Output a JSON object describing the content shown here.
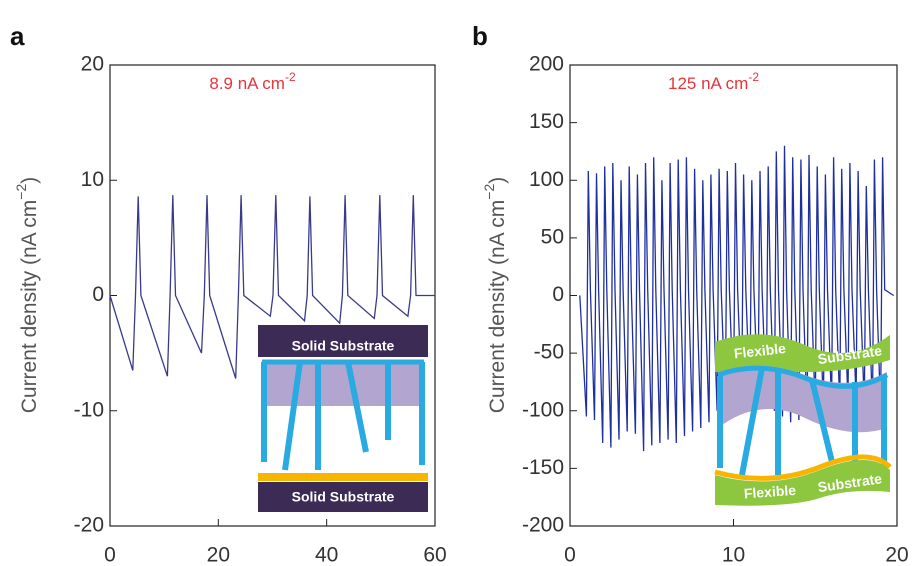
{
  "chart_data": [
    {
      "type": "line",
      "panel_label": "a",
      "annotation": "8.9 nA cm",
      "annotation_sup": "-2",
      "ylabel": "Current density (nA cm",
      "ylabel_sup": "−2",
      "ylabel_end": ")",
      "xlim": [
        0,
        60
      ],
      "xticks": [
        0,
        20,
        40,
        60
      ],
      "ylim": [
        -20,
        20
      ],
      "yticks": [
        -20,
        -10,
        0,
        10,
        20
      ],
      "inset_texts": [
        "Solid Substrate",
        "Solid Substrate"
      ],
      "series": [
        {
          "color": "#3a3a8c",
          "x": [
            0,
            4.2,
            4.7,
            5.2,
            5.7,
            10.6,
            11.1,
            11.6,
            12.1,
            16.9,
            17.4,
            17.9,
            18.4,
            23.2,
            23.7,
            24.2,
            24.7,
            29.6,
            30.1,
            30.6,
            31.1,
            35.9,
            36.4,
            36.9,
            37.4,
            42.4,
            42.9,
            43.4,
            43.9,
            48.8,
            49.3,
            49.8,
            50.3,
            55.0,
            55.5,
            56.0,
            56.5,
            60
          ],
          "values": [
            0,
            -6.5,
            0,
            8.6,
            0,
            -7,
            0,
            8.7,
            0,
            -5,
            0,
            8.7,
            0,
            -7.2,
            0,
            8.7,
            0,
            -1.8,
            0,
            8.7,
            0,
            -2.2,
            0,
            8.6,
            0,
            -2.4,
            0,
            8.7,
            0,
            -2,
            0,
            8.7,
            0,
            -1.8,
            0,
            8.7,
            0,
            0
          ]
        }
      ]
    },
    {
      "type": "line",
      "panel_label": "b",
      "annotation": "125 nA cm",
      "annotation_sup": "-2",
      "ylabel": "Current density (nA cm",
      "ylabel_sup": "−2",
      "ylabel_end": ")",
      "xlim": [
        0,
        20
      ],
      "xticks": [
        0,
        10,
        20
      ],
      "ylim": [
        -200,
        200
      ],
      "yticks": [
        -200,
        -150,
        -100,
        -50,
        0,
        50,
        100,
        150,
        200
      ],
      "inset_texts": [
        "Flexible",
        "Substrate",
        "Flexible",
        "Substrate"
      ],
      "series": [
        {
          "color": "#1f2f9e",
          "x": [
            0.6,
            1.0,
            1.12,
            1.25,
            1.5,
            1.62,
            1.75,
            2.0,
            2.12,
            2.25,
            2.5,
            2.62,
            2.75,
            3.0,
            3.12,
            3.25,
            3.5,
            3.62,
            3.75,
            4.0,
            4.12,
            4.25,
            4.5,
            4.62,
            4.75,
            5.0,
            5.12,
            5.25,
            5.5,
            5.62,
            5.75,
            6.0,
            6.12,
            6.25,
            6.5,
            6.62,
            6.75,
            7.0,
            7.12,
            7.25,
            7.5,
            7.62,
            7.75,
            8.0,
            8.12,
            8.25,
            8.5,
            8.62,
            8.75,
            9.0,
            9.12,
            9.25,
            9.5,
            9.62,
            9.75,
            10.0,
            10.12,
            10.25,
            10.5,
            10.62,
            10.75,
            11.0,
            11.12,
            11.25,
            11.5,
            11.62,
            11.75,
            12.0,
            12.12,
            12.25,
            12.5,
            12.62,
            12.75,
            13.0,
            13.12,
            13.25,
            13.5,
            13.62,
            13.75,
            14.0,
            14.12,
            14.25,
            14.5,
            14.62,
            14.75,
            15.0,
            15.12,
            15.25,
            15.5,
            15.62,
            15.75,
            16.0,
            16.12,
            16.25,
            16.5,
            16.62,
            16.75,
            17.0,
            17.12,
            17.25,
            17.5,
            17.62,
            17.75,
            18.0,
            18.12,
            18.25,
            18.5,
            18.62,
            18.75,
            19.0,
            19.12,
            19.25,
            19.8
          ],
          "values": [
            0,
            -105,
            108,
            5,
            -108,
            106,
            5,
            -128,
            112,
            5,
            -132,
            115,
            5,
            -125,
            100,
            5,
            -118,
            112,
            5,
            -120,
            105,
            5,
            -135,
            115,
            5,
            -130,
            120,
            5,
            -128,
            100,
            5,
            -125,
            115,
            5,
            -128,
            118,
            5,
            -122,
            120,
            5,
            -118,
            110,
            5,
            -115,
            100,
            5,
            -110,
            105,
            5,
            -100,
            110,
            5,
            -95,
            108,
            5,
            -95,
            115,
            5,
            -90,
            105,
            5,
            -90,
            100,
            5,
            -92,
            108,
            5,
            -95,
            112,
            5,
            -100,
            125,
            5,
            -105,
            130,
            5,
            -110,
            120,
            5,
            -108,
            118,
            5,
            -105,
            122,
            5,
            -100,
            112,
            5,
            -98,
            105,
            5,
            -95,
            120,
            5,
            -95,
            110,
            5,
            -92,
            115,
            5,
            -90,
            108,
            5,
            -95,
            95,
            5,
            -98,
            118,
            5,
            -100,
            120,
            5,
            0
          ]
        }
      ]
    }
  ]
}
